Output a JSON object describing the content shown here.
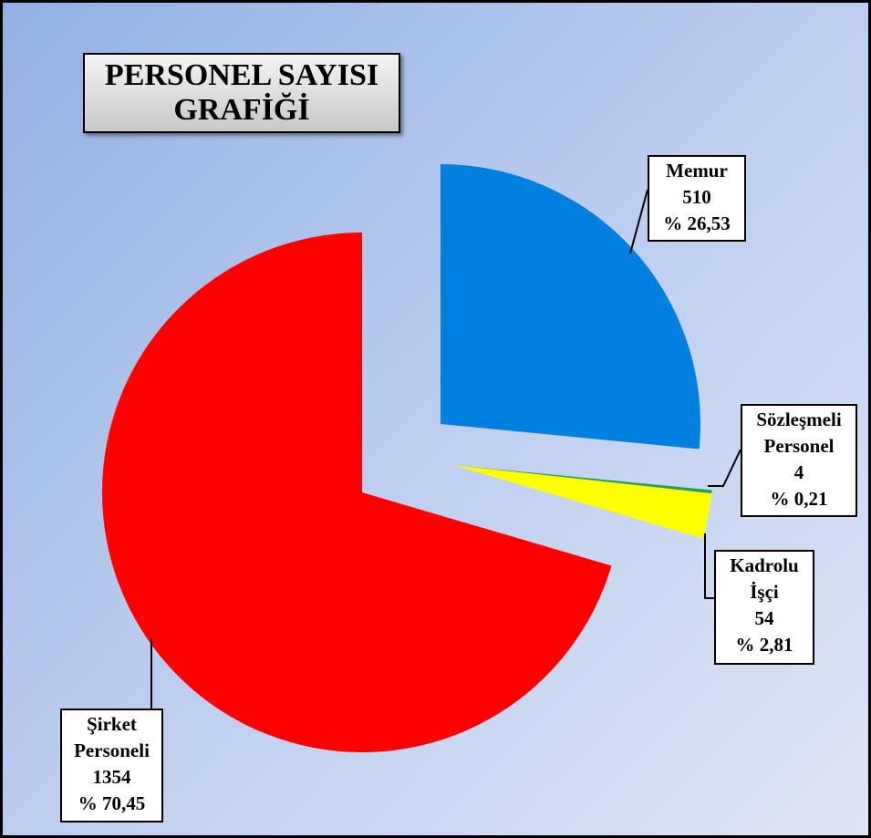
{
  "chart_data": {
    "type": "pie",
    "title": "PERSONEL SAYISI GRAFİĞİ",
    "categories": [
      "Memur",
      "Sözleşmeli Personel",
      "Kadrolu İşçi",
      "Şirket Personeli"
    ],
    "values": [
      510,
      4,
      54,
      1354
    ],
    "percentages": [
      26.53,
      0.21,
      2.81,
      70.45
    ],
    "percentage_labels": [
      "% 26,53",
      "% 0,21",
      "% 2,81",
      "% 70,45"
    ],
    "colors": [
      "#0080e0",
      "#20a060",
      "#ffff00",
      "#ff0000"
    ]
  }
}
